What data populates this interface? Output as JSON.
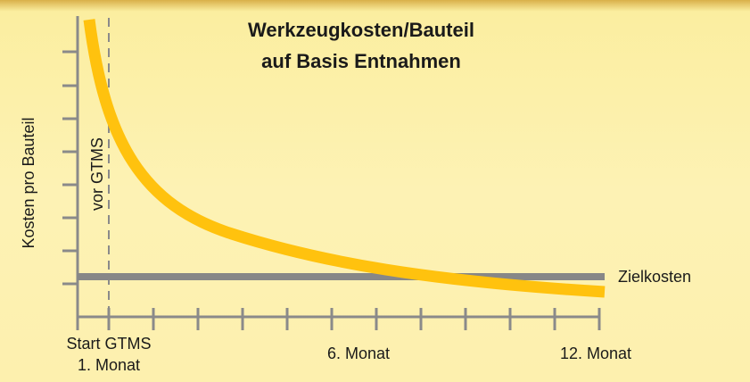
{
  "title": {
    "line1": "Werkzeugkosten/Bauteil",
    "line2": "auf Basis Entnahmen"
  },
  "y_axis_label": "Kosten pro Bauteil",
  "marker_label": "vor GTMS",
  "target_label": "Zielkosten",
  "x_labels": [
    {
      "line1": "Start GTMS",
      "line2": "1. Monat"
    },
    {
      "line1": "6. Monat"
    },
    {
      "line1": "12. Monat"
    }
  ]
}
